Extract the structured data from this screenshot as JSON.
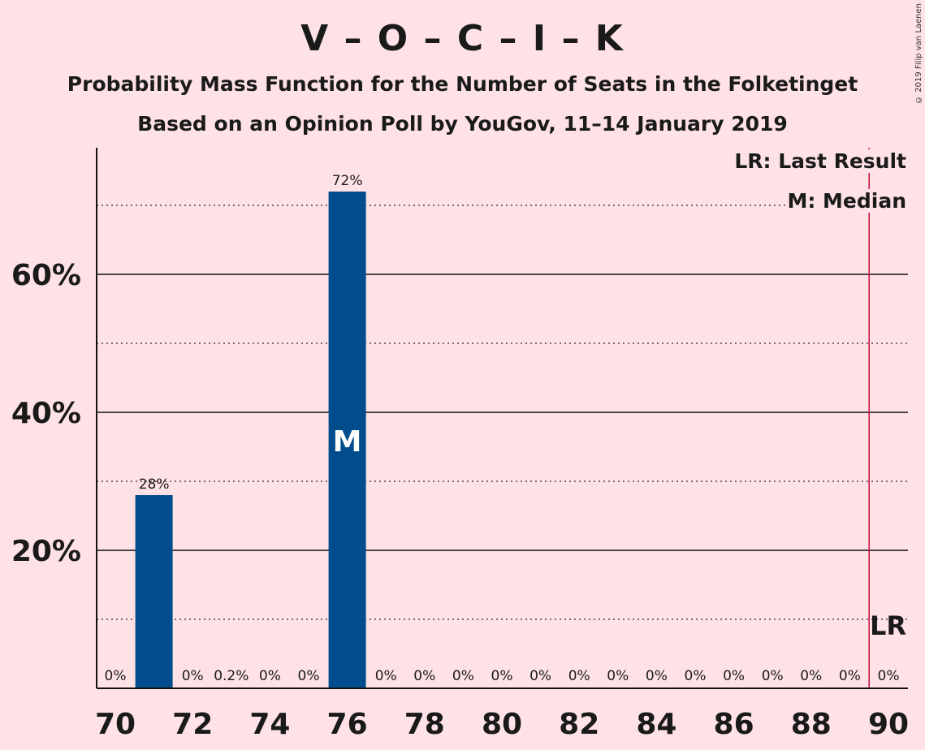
{
  "header": {
    "title": "V – O – C – I – K",
    "subtitle_1": "Probability Mass Function for the Number of Seats in the Folketinget",
    "subtitle_2": "Based on an Opinion Poll by YouGov, 11–14 January 2019",
    "copyright": "© 2019 Filip van Laenen"
  },
  "legend": {
    "last_result": "LR: Last Result",
    "median": "M: Median"
  },
  "chart_data": {
    "type": "bar",
    "x": [
      70,
      71,
      72,
      73,
      74,
      75,
      76,
      77,
      78,
      79,
      80,
      81,
      82,
      83,
      84,
      85,
      86,
      87,
      88,
      89,
      90
    ],
    "values": [
      0,
      28,
      0,
      0.2,
      0,
      0,
      72,
      0,
      0,
      0,
      0,
      0,
      0,
      0,
      0,
      0,
      0,
      0,
      0,
      0,
      0
    ],
    "labels": [
      "0%",
      "28%",
      "0%",
      "0.2%",
      "0%",
      "0%",
      "72%",
      "0%",
      "0%",
      "0%",
      "0%",
      "0%",
      "0%",
      "0%",
      "0%",
      "0%",
      "0%",
      "0%",
      "0%",
      "0%",
      "0%"
    ],
    "x_ticks": [
      70,
      72,
      74,
      76,
      78,
      80,
      82,
      84,
      86,
      88,
      90
    ],
    "y_ticks": [
      20,
      40,
      60
    ],
    "y_tick_labels": [
      "20%",
      "40%",
      "60%"
    ],
    "y_minor_gridlines": [
      10,
      30,
      50,
      70
    ],
    "ylim": [
      0,
      78
    ],
    "xlim": [
      69.5,
      90.5
    ],
    "median": 76,
    "median_marker": "M",
    "last_result": 89.5,
    "last_result_marker": "LR",
    "bar_color": "#004c8c",
    "last_result_color": "#c0103c",
    "background": "#ffe2e6"
  }
}
